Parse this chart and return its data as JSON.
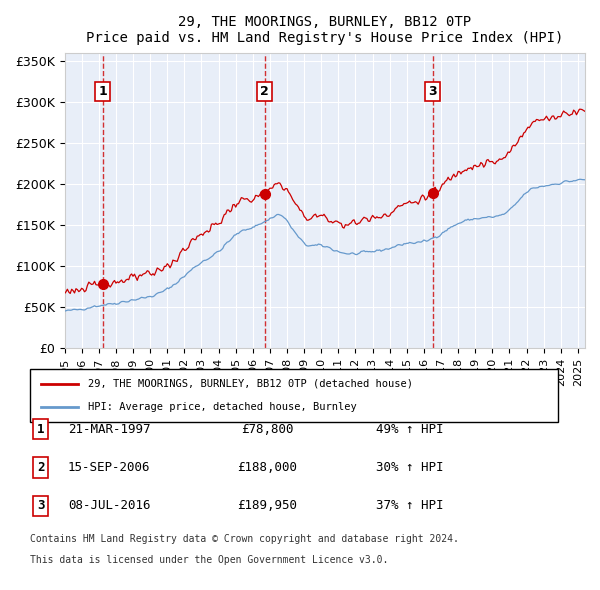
{
  "title": "29, THE MOORINGS, BURNLEY, BB12 0TP",
  "subtitle": "Price paid vs. HM Land Registry's House Price Index (HPI)",
  "sales": [
    {
      "date": "1997-03-21",
      "price": 78800,
      "label": "1",
      "pct": "49% ↑ HPI"
    },
    {
      "date": "2006-09-15",
      "price": 188000,
      "label": "2",
      "pct": "30% ↑ HPI"
    },
    {
      "date": "2016-07-08",
      "price": 189950,
      "label": "3",
      "pct": "37% ↑ HPI"
    }
  ],
  "sale_dates_display": [
    "21-MAR-1997",
    "15-SEP-2006",
    "08-JUL-2016"
  ],
  "legend_red": "29, THE MOORINGS, BURNLEY, BB12 0TP (detached house)",
  "legend_blue": "HPI: Average price, detached house, Burnley",
  "footer1": "Contains HM Land Registry data © Crown copyright and database right 2024.",
  "footer2": "This data is licensed under the Open Government Licence v3.0.",
  "ylim": [
    0,
    360000
  ],
  "yticks": [
    0,
    50000,
    100000,
    150000,
    200000,
    250000,
    300000,
    350000
  ],
  "ytick_labels": [
    "£0",
    "£50K",
    "£100K",
    "£150K",
    "£200K",
    "£250K",
    "£300K",
    "£350K"
  ],
  "bg_color": "#e8eef8",
  "line_red": "#cc0000",
  "line_blue": "#6699cc",
  "dot_color": "#cc0000",
  "vline_color": "#cc0000",
  "label_box_color": "#cc0000",
  "grid_color": "#ffffff"
}
